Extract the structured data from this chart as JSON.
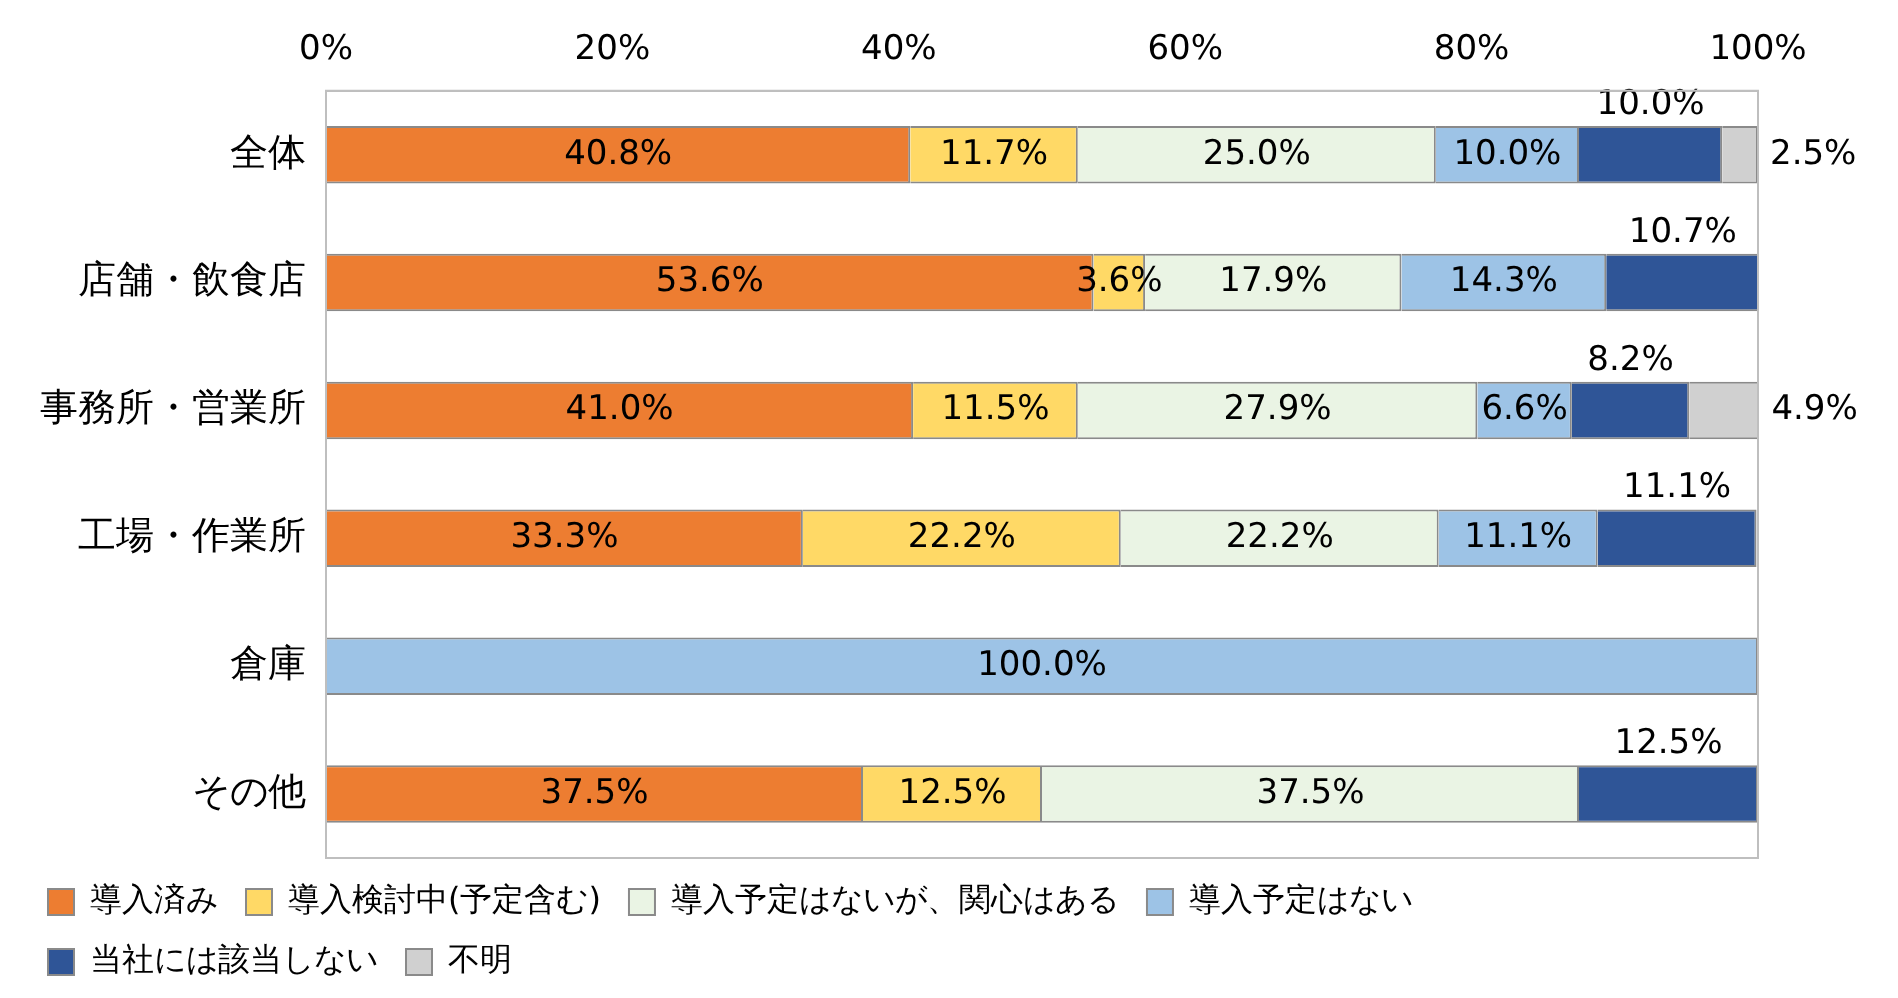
{
  "chart_data": {
    "type": "bar",
    "orientation": "horizontal",
    "stacked": true,
    "categories": [
      "全体",
      "店舗・飲食店",
      "事務所・営業所",
      "工場・作業所",
      "倉庫",
      "その他"
    ],
    "xlim": [
      0,
      100
    ],
    "xticks": [
      {
        "value": 0,
        "label": "0%"
      },
      {
        "value": 20,
        "label": "20%"
      },
      {
        "value": 40,
        "label": "40%"
      },
      {
        "value": 60,
        "label": "60%"
      },
      {
        "value": 80,
        "label": "80%"
      },
      {
        "value": 100,
        "label": "100%"
      }
    ],
    "grid": false,
    "legend": "bottom",
    "series": [
      {
        "name": "導入済み",
        "color": "#ed7d31",
        "values": [
          40.8,
          53.6,
          41.0,
          33.3,
          null,
          37.5
        ],
        "value_labels": [
          "40.8%",
          "53.6%",
          "41.0%",
          "33.3%",
          null,
          "37.5%"
        ]
      },
      {
        "name": "導入検討中(予定含む)",
        "color": "#ffd966",
        "values": [
          11.7,
          3.6,
          11.5,
          22.2,
          null,
          12.5
        ],
        "value_labels": [
          "11.7%",
          "3.6%",
          "11.5%",
          "22.2%",
          null,
          "12.5%"
        ]
      },
      {
        "name": "導入予定はないが、関心はある",
        "color": "#eaf4e4",
        "values": [
          25.0,
          17.9,
          27.9,
          22.2,
          null,
          37.5
        ],
        "value_labels": [
          "25.0%",
          "17.9%",
          "27.9%",
          "22.2%",
          null,
          "37.5%"
        ]
      },
      {
        "name": "導入予定はない",
        "color": "#9dc3e6",
        "values": [
          10.0,
          14.3,
          6.6,
          11.1,
          100.0,
          null
        ],
        "value_labels": [
          "10.0%",
          "14.3%",
          "6.6%",
          "11.1%",
          "100.0%",
          null
        ]
      },
      {
        "name": "当社には該当しない",
        "color": "#2f5597",
        "values": [
          10.0,
          10.7,
          8.2,
          11.1,
          null,
          12.5
        ],
        "value_labels": [
          "10.0%",
          "10.7%",
          "8.2%",
          "11.1%",
          null,
          "12.5%"
        ]
      },
      {
        "name": "不明",
        "color": "#d0d0d0",
        "values": [
          2.5,
          null,
          4.9,
          null,
          null,
          null
        ],
        "value_labels": [
          "2.5%",
          null,
          "4.9%",
          null,
          null,
          null
        ]
      }
    ]
  }
}
